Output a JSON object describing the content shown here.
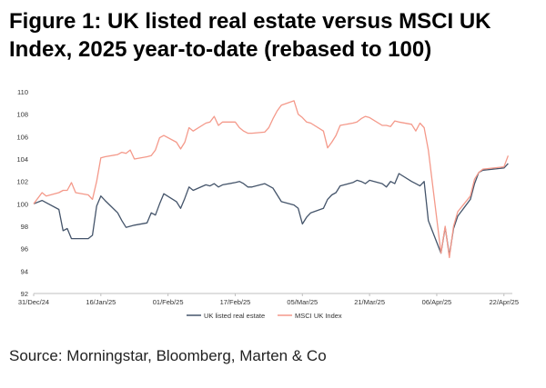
{
  "title": "Figure 1: UK listed real estate versus MSCI UK Index, 2025 year-to-date (rebased to 100)",
  "source": "Source: Morningstar, Bloomberg, Marten & Co",
  "colors": {
    "uk_real_estate": "#44546a",
    "msci_uk": "#f4998a",
    "axis": "#bfbfbf"
  },
  "chart_data": {
    "type": "line",
    "x_type": "date",
    "x_ticks": [
      "31/Dec/24",
      "16/Jan/25",
      "01/Feb/25",
      "17/Feb/25",
      "05/Mar/25",
      "21/Mar/25",
      "06/Apr/25",
      "22/Apr/25"
    ],
    "x_tick_dates": [
      "2024-12-31",
      "2025-01-16",
      "2025-02-01",
      "2025-02-17",
      "2025-03-05",
      "2025-03-21",
      "2025-04-06",
      "2025-04-22"
    ],
    "xlim": [
      "2024-12-31",
      "2025-04-24"
    ],
    "y_ticks": [
      "92",
      "94",
      "96",
      "98",
      "100",
      "102",
      "104",
      "106",
      "108",
      "110"
    ],
    "ylim": [
      92,
      110
    ],
    "grid": false,
    "legend_position": "bottom",
    "series": [
      {
        "name": "UK listed real estate",
        "x": [
          "2024-12-31",
          "2025-01-02",
          "2025-01-03",
          "2025-01-06",
          "2025-01-07",
          "2025-01-08",
          "2025-01-09",
          "2025-01-10",
          "2025-01-13",
          "2025-01-14",
          "2025-01-15",
          "2025-01-16",
          "2025-01-17",
          "2025-01-20",
          "2025-01-21",
          "2025-01-22",
          "2025-01-23",
          "2025-01-24",
          "2025-01-27",
          "2025-01-28",
          "2025-01-29",
          "2025-01-30",
          "2025-01-31",
          "2025-02-03",
          "2025-02-04",
          "2025-02-05",
          "2025-02-06",
          "2025-02-07",
          "2025-02-10",
          "2025-02-11",
          "2025-02-12",
          "2025-02-13",
          "2025-02-14",
          "2025-02-17",
          "2025-02-18",
          "2025-02-19",
          "2025-02-20",
          "2025-02-21",
          "2025-02-24",
          "2025-02-25",
          "2025-02-26",
          "2025-02-27",
          "2025-02-28",
          "2025-03-03",
          "2025-03-04",
          "2025-03-05",
          "2025-03-06",
          "2025-03-07",
          "2025-03-10",
          "2025-03-11",
          "2025-03-12",
          "2025-03-13",
          "2025-03-14",
          "2025-03-17",
          "2025-03-18",
          "2025-03-19",
          "2025-03-20",
          "2025-03-21",
          "2025-03-24",
          "2025-03-25",
          "2025-03-26",
          "2025-03-27",
          "2025-03-28",
          "2025-03-31",
          "2025-04-01",
          "2025-04-02",
          "2025-04-03",
          "2025-04-04",
          "2025-04-07",
          "2025-04-08",
          "2025-04-09",
          "2025-04-10",
          "2025-04-11",
          "2025-04-14",
          "2025-04-15",
          "2025-04-16",
          "2025-04-17",
          "2025-04-22",
          "2025-04-23"
        ],
        "values": [
          100,
          100.3,
          100.1,
          99.5,
          97.6,
          97.8,
          96.9,
          96.9,
          96.9,
          97.2,
          99.8,
          100.7,
          100.3,
          99.2,
          98.5,
          97.9,
          98.0,
          98.1,
          98.3,
          99.2,
          99.0,
          100.0,
          100.9,
          100.2,
          99.6,
          100.5,
          101.5,
          101.2,
          101.7,
          101.6,
          101.8,
          101.5,
          101.7,
          101.9,
          102.0,
          101.8,
          101.5,
          101.5,
          101.8,
          101.6,
          101.4,
          100.8,
          100.2,
          99.9,
          99.6,
          98.2,
          98.8,
          99.2,
          99.6,
          100.4,
          100.8,
          101.0,
          101.6,
          101.9,
          102.1,
          102.0,
          101.8,
          102.1,
          101.8,
          101.5,
          102.0,
          101.8,
          102.7,
          102.0,
          101.8,
          101.6,
          102.0,
          98.5,
          95.6,
          97.9,
          95.4,
          97.8,
          98.9,
          100.4,
          101.8,
          102.8,
          103.0,
          103.2,
          103.6
        ]
      },
      {
        "name": "MSCI UK Index",
        "x": [
          "2024-12-31",
          "2025-01-02",
          "2025-01-03",
          "2025-01-06",
          "2025-01-07",
          "2025-01-08",
          "2025-01-09",
          "2025-01-10",
          "2025-01-13",
          "2025-01-14",
          "2025-01-15",
          "2025-01-16",
          "2025-01-17",
          "2025-01-20",
          "2025-01-21",
          "2025-01-22",
          "2025-01-23",
          "2025-01-24",
          "2025-01-27",
          "2025-01-28",
          "2025-01-29",
          "2025-01-30",
          "2025-01-31",
          "2025-02-03",
          "2025-02-04",
          "2025-02-05",
          "2025-02-06",
          "2025-02-07",
          "2025-02-10",
          "2025-02-11",
          "2025-02-12",
          "2025-02-13",
          "2025-02-14",
          "2025-02-17",
          "2025-02-18",
          "2025-02-19",
          "2025-02-20",
          "2025-02-21",
          "2025-02-24",
          "2025-02-25",
          "2025-02-26",
          "2025-02-27",
          "2025-02-28",
          "2025-03-03",
          "2025-03-04",
          "2025-03-05",
          "2025-03-06",
          "2025-03-07",
          "2025-03-10",
          "2025-03-11",
          "2025-03-12",
          "2025-03-13",
          "2025-03-14",
          "2025-03-17",
          "2025-03-18",
          "2025-03-19",
          "2025-03-20",
          "2025-03-21",
          "2025-03-24",
          "2025-03-25",
          "2025-03-26",
          "2025-03-27",
          "2025-03-28",
          "2025-03-31",
          "2025-04-01",
          "2025-04-02",
          "2025-04-03",
          "2025-04-04",
          "2025-04-07",
          "2025-04-08",
          "2025-04-09",
          "2025-04-10",
          "2025-04-11",
          "2025-04-14",
          "2025-04-15",
          "2025-04-16",
          "2025-04-17",
          "2025-04-22",
          "2025-04-23"
        ],
        "values": [
          100,
          101.0,
          100.7,
          101.0,
          101.2,
          101.2,
          101.9,
          101.0,
          100.8,
          100.4,
          102.0,
          104.1,
          104.2,
          104.4,
          104.6,
          104.5,
          104.8,
          104.0,
          104.2,
          104.3,
          104.8,
          105.9,
          106.1,
          105.5,
          104.9,
          105.5,
          106.8,
          106.5,
          107.2,
          107.3,
          107.8,
          107.0,
          107.3,
          107.3,
          106.8,
          106.5,
          106.3,
          106.3,
          106.4,
          106.8,
          107.6,
          108.3,
          108.8,
          109.2,
          108.0,
          107.7,
          107.3,
          107.2,
          106.5,
          105.0,
          105.5,
          106.1,
          107.0,
          107.2,
          107.3,
          107.6,
          107.8,
          107.7,
          107.0,
          107.0,
          106.9,
          107.4,
          107.3,
          107.1,
          106.5,
          107.2,
          106.8,
          104.8,
          95.6,
          98.0,
          95.2,
          98.0,
          99.3,
          100.7,
          102.2,
          102.8,
          103.1,
          103.3,
          104.3
        ]
      }
    ]
  }
}
